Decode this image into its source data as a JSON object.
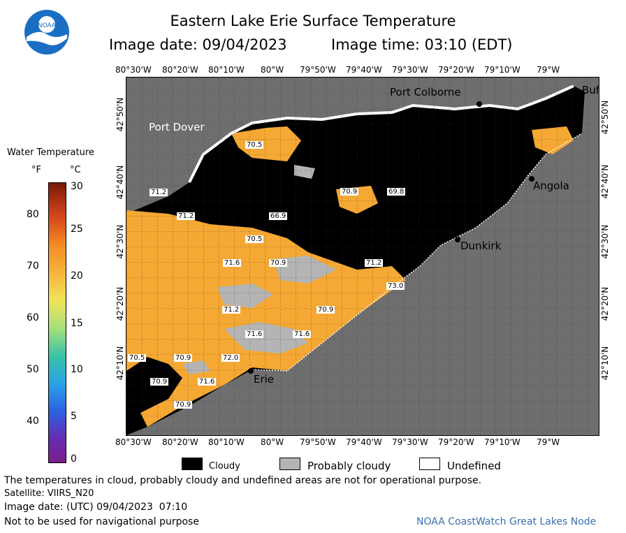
{
  "header": {
    "title": "Eastern Lake Erie Surface Temperature",
    "image_date": "Image date: 09/04/2023",
    "image_time": "Image time: 03:10 (EDT)",
    "logo_text": "NOAA"
  },
  "map": {
    "lon_ticks": [
      "80°30'W",
      "80°20'W",
      "80°10'W",
      "80°W",
      "79°50'W",
      "79°40'W",
      "79°30'W",
      "79°20'W",
      "79°10'W",
      "79°W"
    ],
    "lat_ticks": [
      "42°50'N",
      "42°40'N",
      "42°30'N",
      "42°20'N",
      "42°10'N"
    ],
    "cities": [
      "Port Colborne",
      "Buf",
      "Port Dover",
      "Angola",
      "Dunkirk",
      "Erie"
    ],
    "temperature_labels": [
      "70.5",
      "70.9",
      "69.8",
      "71.2",
      "71.2",
      "66.9",
      "70.5",
      "71.6",
      "70.9",
      "71.2",
      "73.0",
      "71.2",
      "70.9",
      "71.6",
      "71.6",
      "70.5",
      "70.9",
      "72.0",
      "70.9",
      "71.6",
      "70.9"
    ],
    "colors": {
      "water_warm": "#f5a833",
      "cloud": "#000000",
      "land": "#6e6e6e",
      "probably_cloudy": "#b4b4b4",
      "undefined": "#ffffff"
    }
  },
  "scale": {
    "title": "Water Temperature",
    "unit_f": "°F",
    "unit_c": "°C",
    "f_ticks": [
      "80",
      "70",
      "60",
      "50",
      "40"
    ],
    "c_ticks": [
      "30",
      "25",
      "20",
      "15",
      "10",
      "5",
      "0"
    ]
  },
  "legend": {
    "cloudy": "Cloudy",
    "probably_cloudy": "Probably cloudy",
    "undefined": "Undefined"
  },
  "footer": {
    "disclaimer": "The temperatures in cloud, probably cloudy and undefined areas are not for operational purpose.",
    "satellite": "Satellite: VIIRS_N20",
    "utc_date": "Image date: (UTC) 09/04/2023  07:10",
    "nav_warning": "Not to be used for navigational purpose",
    "credit": "NOAA CoastWatch Great Lakes Node"
  }
}
